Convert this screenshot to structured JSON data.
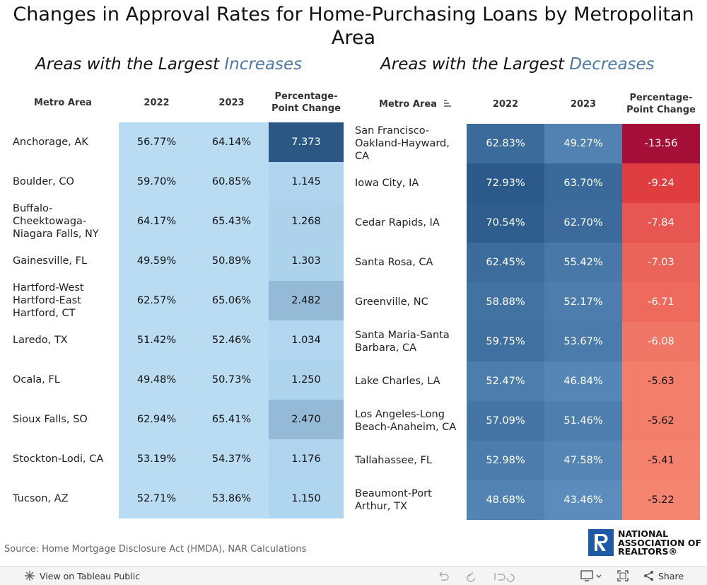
{
  "title": "Changes in Approval Rates for Home-Purchasing Loans by Metropolitan Area",
  "increases": {
    "heading_prefix": "Areas with the Largest ",
    "heading_emphasis": "Increases",
    "columns": [
      "Metro Area",
      "2022",
      "2023",
      "Percentage-Point Change"
    ],
    "rows": [
      [
        "Anchorage, AK",
        "56.77%",
        "64.14%",
        "7.373"
      ],
      [
        "Boulder, CO",
        "59.70%",
        "60.85%",
        "1.145"
      ],
      [
        "Buffalo-Cheektowaga-Niagara Falls, NY",
        "64.17%",
        "65.43%",
        "1.268"
      ],
      [
        "Gainesville, FL",
        "49.59%",
        "50.89%",
        "1.303"
      ],
      [
        "Hartford-West Hartford-East Hartford, CT",
        "62.57%",
        "65.06%",
        "2.482"
      ],
      [
        "Laredo, TX",
        "51.42%",
        "52.46%",
        "1.034"
      ],
      [
        "Ocala, FL",
        "49.48%",
        "50.73%",
        "1.250"
      ],
      [
        "Sioux Falls, SO",
        "62.94%",
        "65.41%",
        "2.470"
      ],
      [
        "Stockton-Lodi, CA",
        "53.19%",
        "54.37%",
        "1.176"
      ],
      [
        "Tucson, AZ",
        "52.71%",
        "53.86%",
        "1.150"
      ]
    ]
  },
  "decreases": {
    "heading_prefix": "Areas with the Largest ",
    "heading_emphasis": "Decreases",
    "columns": [
      "Metro Area",
      "2022",
      "2023",
      "Percentage-Point Change"
    ],
    "rows": [
      [
        "San Francisco-Oakland-Hayward, CA",
        "62.83%",
        "49.27%",
        "-13.56"
      ],
      [
        "Iowa City, IA",
        "72.93%",
        "63.70%",
        "-9.24"
      ],
      [
        "Cedar Rapids, IA",
        "70.54%",
        "62.70%",
        "-7.84"
      ],
      [
        "Santa Rosa, CA",
        "62.45%",
        "55.42%",
        "-7.03"
      ],
      [
        "Greenville, NC",
        "58.88%",
        "52.17%",
        "-6.71"
      ],
      [
        "Santa Maria-Santa Barbara, CA",
        "59.75%",
        "53.67%",
        "-6.08"
      ],
      [
        "Lake Charles, LA",
        "52.47%",
        "46.84%",
        "-5.63"
      ],
      [
        "Los Angeles-Long Beach-Anaheim, CA",
        "57.09%",
        "51.46%",
        "-5.62"
      ],
      [
        "Tallahassee, FL",
        "52.98%",
        "47.58%",
        "-5.41"
      ],
      [
        "Beaumont-Port Arthur, TX",
        "48.68%",
        "43.46%",
        "-5.22"
      ]
    ]
  },
  "source": "Source: Home Mortgage Disclosure Act (HMDA), NAR Calculations",
  "logo": [
    "NATIONAL",
    "ASSOCIATION OF",
    "REALTORS®"
  ],
  "toolbar": {
    "view": "View on Tableau Public",
    "share": "Share"
  }
}
